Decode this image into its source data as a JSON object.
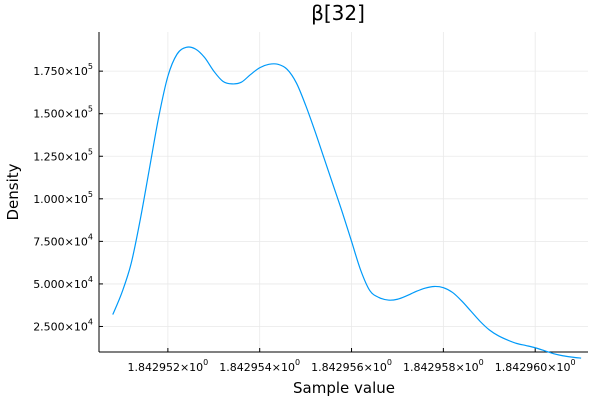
{
  "chart_data": {
    "type": "line",
    "title": "β[32]",
    "xlabel": "Sample value",
    "ylabel": "Density",
    "grid": true,
    "legend": "none",
    "series_color": "#009af9",
    "xlim": [
      1.8429505,
      1.84296115
    ],
    "ylim": [
      10000,
      198000
    ],
    "x_ticks": [
      {
        "value": 1.842952,
        "mantissa": "1.842952",
        "times": "×10",
        "exp": "0"
      },
      {
        "value": 1.842954,
        "mantissa": "1.842954",
        "times": "×10",
        "exp": "0"
      },
      {
        "value": 1.842956,
        "mantissa": "1.842956",
        "times": "×10",
        "exp": "0"
      },
      {
        "value": 1.842958,
        "mantissa": "1.842958",
        "times": "×10",
        "exp": "0"
      },
      {
        "value": 1.84296,
        "mantissa": "1.842960",
        "times": "×10",
        "exp": "0"
      }
    ],
    "y_ticks": [
      {
        "value": 25000,
        "mantissa": "2.500",
        "times": "×10",
        "exp": "4"
      },
      {
        "value": 50000,
        "mantissa": "5.000",
        "times": "×10",
        "exp": "4"
      },
      {
        "value": 75000,
        "mantissa": "7.500",
        "times": "×10",
        "exp": "4"
      },
      {
        "value": 100000,
        "mantissa": "1.000",
        "times": "×10",
        "exp": "5"
      },
      {
        "value": 125000,
        "mantissa": "1.250",
        "times": "×10",
        "exp": "5"
      },
      {
        "value": 150000,
        "mantissa": "1.500",
        "times": "×10",
        "exp": "5"
      },
      {
        "value": 175000,
        "mantissa": "1.750",
        "times": "×10",
        "exp": "5"
      }
    ],
    "x": [
      1.8429508,
      1.842951,
      1.8429512,
      1.8429514,
      1.8429516,
      1.8429518,
      1.842952,
      1.8429522,
      1.8429524,
      1.8429526,
      1.8429528,
      1.842953,
      1.8429532,
      1.8429534,
      1.8429536,
      1.8429538,
      1.842954,
      1.8429542,
      1.8429544,
      1.8429546,
      1.8429548,
      1.842955,
      1.8429552,
      1.8429554,
      1.8429556,
      1.8429558,
      1.842956,
      1.8429562,
      1.8429564,
      1.8429566,
      1.8429568,
      1.842957,
      1.8429572,
      1.8429574,
      1.8429576,
      1.8429578,
      1.842958,
      1.8429582,
      1.8429584,
      1.8429586,
      1.8429588,
      1.842959,
      1.8429592,
      1.8429594,
      1.8429596,
      1.8429598,
      1.84296,
      1.8429602,
      1.8429604,
      1.8429606,
      1.8429608,
      1.842961
    ],
    "y": [
      32000,
      45000,
      62000,
      88000,
      118000,
      148000,
      172000,
      185000,
      189000,
      188000,
      183000,
      175000,
      169000,
      167500,
      168500,
      173000,
      177000,
      179000,
      179000,
      176000,
      168000,
      155000,
      140000,
      124000,
      108000,
      92000,
      75000,
      58000,
      46000,
      42000,
      40500,
      41000,
      43000,
      45500,
      47500,
      48500,
      47800,
      45000,
      40000,
      34000,
      28000,
      23000,
      19500,
      17000,
      15000,
      13800,
      12500,
      10800,
      9000,
      7800,
      7000,
      6400
    ]
  }
}
